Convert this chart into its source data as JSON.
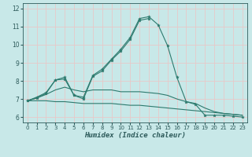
{
  "xlabel": "Humidex (Indice chaleur)",
  "background_color": "#c8e8e8",
  "grid_color": "#b8d8d8",
  "line_color": "#2d7a6e",
  "x_values": [
    0,
    1,
    2,
    3,
    4,
    5,
    6,
    7,
    8,
    9,
    10,
    11,
    12,
    13,
    14,
    15,
    16,
    17,
    18,
    19,
    20,
    21,
    22,
    23
  ],
  "line1_y": [
    6.9,
    7.1,
    7.35,
    8.05,
    8.2,
    7.2,
    7.1,
    8.3,
    8.65,
    9.2,
    9.75,
    10.4,
    11.45,
    11.55,
    11.1,
    9.95,
    8.2,
    6.85,
    6.7,
    6.1,
    6.1,
    6.1,
    6.05,
    6.0
  ],
  "line2_y": [
    6.9,
    7.05,
    7.3,
    8.05,
    8.1,
    7.2,
    7.0,
    8.25,
    8.55,
    9.15,
    9.65,
    10.3,
    11.35,
    11.45,
    null,
    null,
    null,
    null,
    null,
    null,
    null,
    null,
    null,
    null
  ],
  "line3_y": [
    6.9,
    7.05,
    7.25,
    7.5,
    7.65,
    7.5,
    7.4,
    7.5,
    7.5,
    7.5,
    7.4,
    7.4,
    7.4,
    7.35,
    7.3,
    7.2,
    7.0,
    6.85,
    6.75,
    6.5,
    6.3,
    6.2,
    6.15,
    6.1
  ],
  "line4_y": [
    6.9,
    6.9,
    6.9,
    6.85,
    6.85,
    6.8,
    6.75,
    6.75,
    6.75,
    6.75,
    6.7,
    6.65,
    6.65,
    6.6,
    6.55,
    6.5,
    6.45,
    6.4,
    6.35,
    6.3,
    6.25,
    6.2,
    6.15,
    6.1
  ],
  "xlim": [
    -0.5,
    23.5
  ],
  "ylim": [
    5.7,
    12.3
  ],
  "yticks": [
    6,
    7,
    8,
    9,
    10,
    11,
    12
  ],
  "xticks": [
    0,
    1,
    2,
    3,
    4,
    5,
    6,
    7,
    8,
    9,
    10,
    11,
    12,
    13,
    14,
    15,
    16,
    17,
    18,
    19,
    20,
    21,
    22,
    23
  ],
  "tick_color": "#2d5a5a",
  "xlabel_fontsize": 6.5,
  "tick_fontsize": 5.0
}
